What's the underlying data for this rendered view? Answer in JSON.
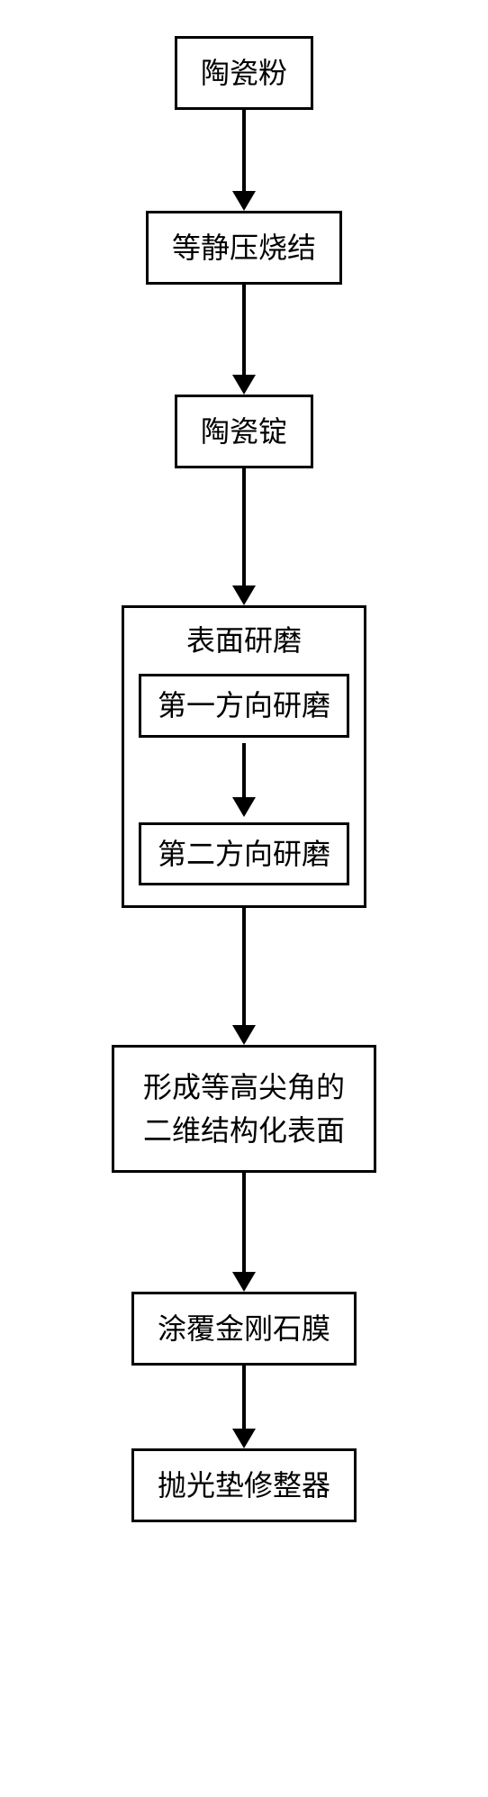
{
  "flowchart": {
    "type": "flowchart",
    "direction": "vertical",
    "background_color": "#ffffff",
    "border_color": "#000000",
    "text_color": "#000000",
    "border_width": 3,
    "font_size": 32,
    "font_family": "SimSun",
    "nodes": {
      "n1": {
        "label": "陶瓷粉",
        "width_pad": 26
      },
      "n2": {
        "label": "等静压烧结",
        "width_pad": 26
      },
      "n3": {
        "label": "陶瓷锭",
        "width_pad": 26
      },
      "n4": {
        "label": "表面研磨",
        "is_container": true,
        "children": {
          "n4a": {
            "label": "第一方向研磨"
          },
          "n4b": {
            "label": "第二方向研磨"
          }
        }
      },
      "n5": {
        "label_line1": "形成等高尖角的",
        "label_line2": "二维结构化表面",
        "multiline": true
      },
      "n6": {
        "label": "涂覆金刚石膜",
        "width_pad": 22
      },
      "n7": {
        "label": "抛光垫修整器",
        "width_pad": 22
      }
    },
    "arrows": {
      "a1": {
        "length": 90
      },
      "a2": {
        "length": 100
      },
      "a3": {
        "length": 130
      },
      "a_inner": {
        "length": 60
      },
      "a4": {
        "length": 130
      },
      "a5": {
        "length": 110
      },
      "a6": {
        "length": 70
      }
    },
    "arrow_color": "#000000",
    "arrow_width": 4,
    "arrow_head_size": 13
  }
}
